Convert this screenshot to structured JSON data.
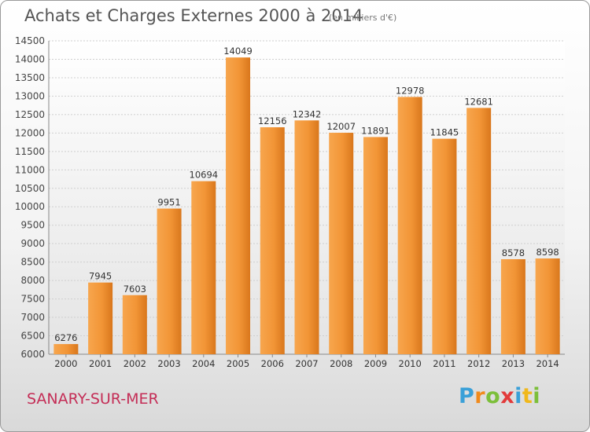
{
  "title": "Achats et Charges Externes 2000 à 2014",
  "unit_note": "(en milliers d'€)",
  "city": "SANARY-SUR-MER",
  "logo": {
    "letters": [
      "P",
      "r",
      "o",
      "x",
      "i",
      "t",
      "i"
    ],
    "colors": [
      "#3aa0d8",
      "#f08a1c",
      "#7cbf3a",
      "#e23a3a",
      "#3aa0d8",
      "#f0b81c",
      "#7cbf3a"
    ]
  },
  "chart_data": {
    "type": "bar",
    "title": "Achats et Charges Externes 2000 à 2014",
    "xlabel": "",
    "ylabel": "",
    "ylim": [
      6000,
      14500
    ],
    "yticks": [
      6000,
      6500,
      7000,
      7500,
      8000,
      8500,
      9000,
      9500,
      10000,
      10500,
      11000,
      11500,
      12000,
      12500,
      13000,
      13500,
      14000,
      14500
    ],
    "categories": [
      "2000",
      "2001",
      "2002",
      "2003",
      "2004",
      "2005",
      "2006",
      "2007",
      "2008",
      "2009",
      "2010",
      "2011",
      "2012",
      "2013",
      "2014"
    ],
    "values": [
      6276,
      7945,
      7603,
      9951,
      10694,
      14049,
      12156,
      12342,
      12007,
      11891,
      12978,
      11845,
      12681,
      8578,
      8598
    ],
    "bar_color": "#f0922e",
    "grid": true
  }
}
